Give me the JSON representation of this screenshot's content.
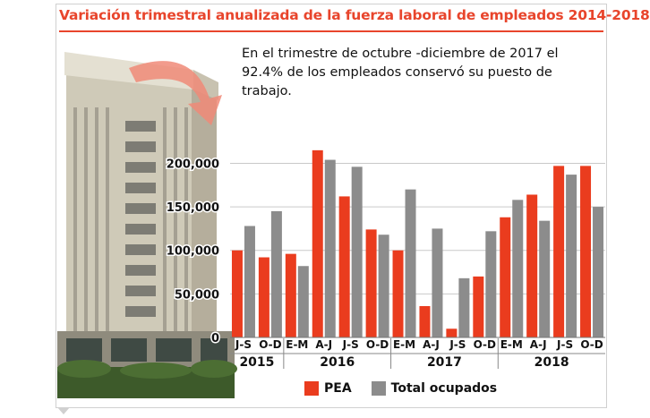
{
  "title": "Variación trimestral anualizada de la fuerza laboral de empleados 2014-2018",
  "note": {
    "line1": "En el trimestre de octubre -diciembre de 2017 el",
    "line2": "92.4% de los empleados conservó su puesto de",
    "line3": "trabajo."
  },
  "colors": {
    "accent": "#e8452c",
    "pea": "#ea3c1e",
    "ocupados": "#8c8c8c"
  },
  "legend": {
    "pea": "PEA",
    "ocupados": "Total ocupados"
  },
  "chart_data": {
    "type": "bar",
    "categories": [
      "J-S",
      "O-D",
      "E-M",
      "A-J",
      "J-S",
      "O-D",
      "E-M",
      "A-J",
      "J-S",
      "O-D",
      "E-M",
      "A-J",
      "J-S",
      "O-D"
    ],
    "year_groups": [
      {
        "label": "2015",
        "count": 2
      },
      {
        "label": "2016",
        "count": 4
      },
      {
        "label": "2017",
        "count": 4
      },
      {
        "label": "2018",
        "count": 4
      }
    ],
    "series": [
      {
        "name": "PEA",
        "values": [
          100000,
          92000,
          96000,
          215000,
          162000,
          124000,
          100000,
          36000,
          10000,
          70000,
          138000,
          164000,
          197000,
          197000
        ]
      },
      {
        "name": "Total ocupados",
        "values": [
          128000,
          145000,
          82000,
          204000,
          196000,
          118000,
          170000,
          125000,
          68000,
          122000,
          158000,
          134000,
          187000,
          150000
        ]
      }
    ],
    "yticks": [
      0,
      50000,
      100000,
      150000,
      200000
    ],
    "ytick_labels": [
      "0",
      "50,000",
      "100,000",
      "150,000",
      "200,000"
    ],
    "ylim": [
      0,
      220000
    ],
    "grid": true
  }
}
